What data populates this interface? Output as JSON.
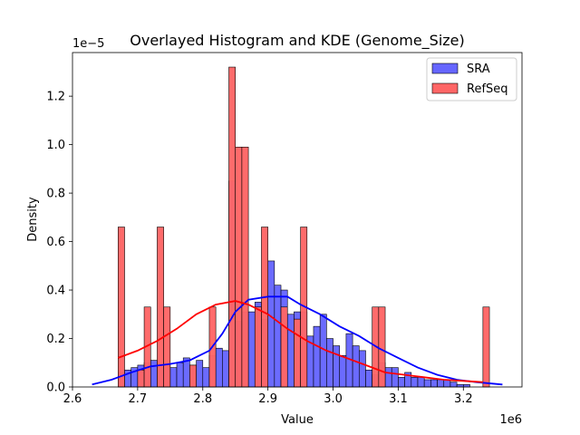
{
  "chart_data": {
    "type": "histogram+kde",
    "title": "Overlayed Histogram and KDE (Genome_Size)",
    "xlabel": "Value",
    "ylabel": "Density",
    "x_scale_label": "1e6",
    "y_scale_label": "1e−5",
    "xlim": [
      2.6,
      3.29
    ],
    "ylim": [
      0,
      1.38
    ],
    "x_ticks": [
      2.6,
      2.7,
      2.8,
      2.9,
      3.0,
      3.1,
      3.2
    ],
    "x_tick_labels": [
      "2.6",
      "2.7",
      "2.8",
      "2.9",
      "3.0",
      "3.1",
      "3.2"
    ],
    "y_ticks": [
      0.0,
      0.2,
      0.4,
      0.6,
      0.8,
      1.0,
      1.2
    ],
    "y_tick_labels": [
      "0.0",
      "0.2",
      "0.4",
      "0.6",
      "0.8",
      "1.0",
      "1.2"
    ],
    "legend_position": "top-right",
    "series": [
      {
        "name": "SRA",
        "color": "#0000ff",
        "bar_fill": "#6666ff",
        "bins": [
          [
            2.67,
            2.68,
            0.06
          ],
          [
            2.68,
            2.69,
            0.07
          ],
          [
            2.69,
            2.7,
            0.08
          ],
          [
            2.7,
            2.71,
            0.09
          ],
          [
            2.71,
            2.72,
            0.1
          ],
          [
            2.72,
            2.73,
            0.11
          ],
          [
            2.73,
            2.74,
            0.08
          ],
          [
            2.74,
            2.75,
            0.09
          ],
          [
            2.75,
            2.76,
            0.08
          ],
          [
            2.76,
            2.77,
            0.1
          ],
          [
            2.77,
            2.78,
            0.12
          ],
          [
            2.78,
            2.79,
            0.09
          ],
          [
            2.79,
            2.8,
            0.11
          ],
          [
            2.8,
            2.81,
            0.08
          ],
          [
            2.81,
            2.82,
            0.13
          ],
          [
            2.82,
            2.83,
            0.16
          ],
          [
            2.83,
            2.84,
            0.15
          ],
          [
            2.84,
            2.85,
            0.85
          ],
          [
            2.85,
            2.86,
            0.27
          ],
          [
            2.86,
            2.87,
            0.31
          ],
          [
            2.87,
            2.88,
            0.31
          ],
          [
            2.88,
            2.89,
            0.35
          ],
          [
            2.89,
            2.9,
            0.28
          ],
          [
            2.9,
            2.91,
            0.52
          ],
          [
            2.91,
            2.92,
            0.42
          ],
          [
            2.92,
            2.93,
            0.4
          ],
          [
            2.93,
            2.94,
            0.3
          ],
          [
            2.94,
            2.95,
            0.31
          ],
          [
            2.95,
            2.96,
            0.31
          ],
          [
            2.96,
            2.97,
            0.21
          ],
          [
            2.97,
            2.98,
            0.25
          ],
          [
            2.98,
            2.99,
            0.3
          ],
          [
            2.99,
            3.0,
            0.2
          ],
          [
            3.0,
            3.01,
            0.17
          ],
          [
            3.01,
            3.02,
            0.13
          ],
          [
            3.02,
            3.03,
            0.22
          ],
          [
            3.03,
            3.04,
            0.17
          ],
          [
            3.04,
            3.05,
            0.15
          ],
          [
            3.05,
            3.06,
            0.07
          ],
          [
            3.06,
            3.07,
            0.05
          ],
          [
            3.07,
            3.08,
            0.1
          ],
          [
            3.08,
            3.09,
            0.08
          ],
          [
            3.09,
            3.1,
            0.08
          ],
          [
            3.1,
            3.11,
            0.04
          ],
          [
            3.11,
            3.12,
            0.06
          ],
          [
            3.12,
            3.13,
            0.04
          ],
          [
            3.13,
            3.14,
            0.04
          ],
          [
            3.14,
            3.15,
            0.03
          ],
          [
            3.15,
            3.16,
            0.03
          ],
          [
            3.16,
            3.17,
            0.03
          ],
          [
            3.17,
            3.18,
            0.03
          ],
          [
            3.18,
            3.19,
            0.02
          ],
          [
            3.19,
            3.2,
            0.01
          ],
          [
            3.2,
            3.21,
            0.01
          ]
        ],
        "kde": [
          [
            2.63,
            0.01
          ],
          [
            2.66,
            0.03
          ],
          [
            2.69,
            0.06
          ],
          [
            2.72,
            0.085
          ],
          [
            2.75,
            0.095
          ],
          [
            2.78,
            0.11
          ],
          [
            2.81,
            0.15
          ],
          [
            2.83,
            0.22
          ],
          [
            2.85,
            0.31
          ],
          [
            2.87,
            0.36
          ],
          [
            2.9,
            0.373
          ],
          [
            2.93,
            0.373
          ],
          [
            2.95,
            0.34
          ],
          [
            2.98,
            0.3
          ],
          [
            3.01,
            0.25
          ],
          [
            3.04,
            0.21
          ],
          [
            3.07,
            0.16
          ],
          [
            3.1,
            0.12
          ],
          [
            3.13,
            0.08
          ],
          [
            3.16,
            0.05
          ],
          [
            3.19,
            0.03
          ],
          [
            3.22,
            0.02
          ],
          [
            3.26,
            0.01
          ]
        ]
      },
      {
        "name": "RefSeq",
        "color": "#ff0000",
        "bar_fill": "#ff6666",
        "bins": [
          [
            2.67,
            2.68,
            0.66
          ],
          [
            2.7,
            2.71,
            0.07
          ],
          [
            2.71,
            2.72,
            0.33
          ],
          [
            2.73,
            2.74,
            0.66
          ],
          [
            2.74,
            2.75,
            0.33
          ],
          [
            2.78,
            2.79,
            0.09
          ],
          [
            2.81,
            2.82,
            0.33
          ],
          [
            2.84,
            2.85,
            1.32
          ],
          [
            2.85,
            2.86,
            0.99
          ],
          [
            2.86,
            2.87,
            0.99
          ],
          [
            2.88,
            2.89,
            0.33
          ],
          [
            2.89,
            2.9,
            0.66
          ],
          [
            2.92,
            2.93,
            0.33
          ],
          [
            2.94,
            2.95,
            0.28
          ],
          [
            2.95,
            2.96,
            0.66
          ],
          [
            3.06,
            3.07,
            0.33
          ],
          [
            3.07,
            3.08,
            0.33
          ],
          [
            3.23,
            3.24,
            0.33
          ]
        ],
        "kde": [
          [
            2.67,
            0.12
          ],
          [
            2.7,
            0.15
          ],
          [
            2.73,
            0.19
          ],
          [
            2.76,
            0.24
          ],
          [
            2.79,
            0.3
          ],
          [
            2.82,
            0.34
          ],
          [
            2.85,
            0.355
          ],
          [
            2.87,
            0.34
          ],
          [
            2.9,
            0.3
          ],
          [
            2.93,
            0.24
          ],
          [
            2.96,
            0.19
          ],
          [
            2.99,
            0.15
          ],
          [
            3.02,
            0.12
          ],
          [
            3.05,
            0.09
          ],
          [
            3.08,
            0.06
          ],
          [
            3.11,
            0.05
          ],
          [
            3.14,
            0.04
          ],
          [
            3.17,
            0.03
          ],
          [
            3.2,
            0.025
          ],
          [
            3.23,
            0.02
          ]
        ]
      }
    ]
  }
}
